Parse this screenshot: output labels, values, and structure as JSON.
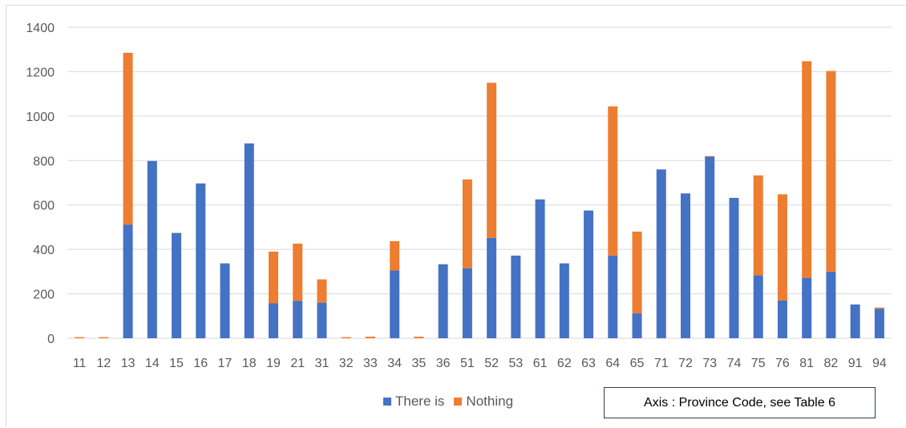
{
  "colors": {
    "series_1": "#4472C4",
    "series_2": "#ED7D31",
    "grid": "#d9d9d9",
    "tick": "#595959"
  },
  "note": "Axis : Province Code, see Table  6",
  "chart_data": {
    "type": "bar",
    "stacked": true,
    "categories": [
      "11",
      "12",
      "13",
      "14",
      "15",
      "16",
      "17",
      "18",
      "19",
      "21",
      "31",
      "32",
      "33",
      "34",
      "35",
      "36",
      "51",
      "52",
      "53",
      "61",
      "62",
      "63",
      "64",
      "65",
      "71",
      "72",
      "73",
      "74",
      "75",
      "76",
      "81",
      "82",
      "91",
      "94"
    ],
    "series": [
      {
        "name": "There is",
        "values": [
          0,
          0,
          512,
          798,
          474,
          697,
          337,
          877,
          157,
          168,
          160,
          0,
          0,
          305,
          0,
          333,
          315,
          452,
          372,
          625,
          337,
          575,
          372,
          112,
          760,
          652,
          818,
          632,
          283,
          170,
          272,
          300,
          152,
          133
        ]
      },
      {
        "name": "Nothing",
        "values": [
          5,
          5,
          773,
          0,
          0,
          0,
          0,
          0,
          233,
          258,
          105,
          5,
          7,
          132,
          7,
          0,
          400,
          698,
          0,
          0,
          0,
          0,
          672,
          368,
          0,
          0,
          2,
          0,
          450,
          478,
          975,
          903,
          0,
          5
        ]
      }
    ],
    "ylim": [
      0,
      1400
    ],
    "yticks": [
      0,
      200,
      400,
      600,
      800,
      1000,
      1200,
      1400
    ],
    "grid": true,
    "legend_position": "bottom"
  }
}
